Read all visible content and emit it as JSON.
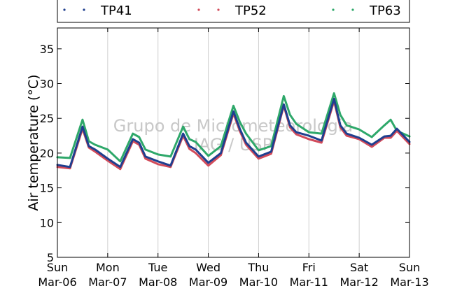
{
  "watermark": {
    "line1": "Grupo de Micrometeorologia",
    "line2": "IAG / USP"
  },
  "chart_data": {
    "type": "line",
    "title": "",
    "xlabel": "",
    "ylabel": "Air temperature (°C)",
    "ylim": [
      5,
      38
    ],
    "yticks": [
      5,
      10,
      15,
      20,
      25,
      30,
      35
    ],
    "xlim": [
      "2016-03-06 00:00",
      "2016-03-13 00:00"
    ],
    "xticks": [
      {
        "day": "Sun",
        "date": "Mar-06"
      },
      {
        "day": "Mon",
        "date": "Mar-07"
      },
      {
        "day": "Tue",
        "date": "Mar-08"
      },
      {
        "day": "Wed",
        "date": "Mar-09"
      },
      {
        "day": "Thu",
        "date": "Mar-10"
      },
      {
        "day": "Fri",
        "date": "Mar-11"
      },
      {
        "day": "Sat",
        "date": "Mar-12"
      },
      {
        "day": "Sun",
        "date": "Mar-13"
      }
    ],
    "grid": "vertical",
    "legend": "top",
    "x": [
      "03-06 00:00",
      "03-06 06:00",
      "03-06 12:00",
      "03-06 15:00",
      "03-06 18:00",
      "03-07 00:00",
      "03-07 06:00",
      "03-07 12:00",
      "03-07 15:00",
      "03-07 18:00",
      "03-08 00:00",
      "03-08 06:00",
      "03-08 12:00",
      "03-08 15:00",
      "03-08 18:00",
      "03-09 00:00",
      "03-09 06:00",
      "03-09 12:00",
      "03-09 15:00",
      "03-09 18:00",
      "03-10 00:00",
      "03-10 06:00",
      "03-10 12:00",
      "03-10 15:00",
      "03-10 18:00",
      "03-11 00:00",
      "03-11 06:00",
      "03-11 12:00",
      "03-11 15:00",
      "03-11 18:00",
      "03-12 00:00",
      "03-12 06:00",
      "03-12 12:00",
      "03-12 15:00",
      "03-12 18:00",
      "03-13 00:00"
    ],
    "series": [
      {
        "name": "TP41",
        "color": "#1f3f8f",
        "values": [
          18.3,
          18.0,
          23.8,
          21.0,
          20.5,
          19.2,
          18.0,
          22.0,
          21.5,
          19.5,
          18.8,
          18.2,
          22.8,
          21.0,
          20.5,
          18.6,
          20.0,
          26.0,
          23.5,
          21.5,
          19.5,
          20.2,
          27.0,
          24.0,
          23.0,
          22.5,
          21.8,
          27.8,
          24.0,
          22.8,
          22.2,
          21.2,
          22.4,
          22.5,
          23.5,
          21.6
        ]
      },
      {
        "name": "TP52",
        "color": "#d24b5a",
        "values": [
          18.0,
          17.8,
          23.5,
          20.8,
          20.2,
          18.9,
          17.7,
          21.7,
          21.2,
          19.2,
          18.4,
          18.0,
          22.5,
          20.6,
          20.0,
          18.2,
          19.7,
          25.7,
          23.2,
          21.2,
          19.2,
          19.9,
          26.8,
          23.7,
          22.7,
          22.0,
          21.5,
          27.5,
          23.7,
          22.5,
          22.0,
          20.9,
          22.2,
          22.2,
          23.2,
          21.3
        ]
      },
      {
        "name": "TP63",
        "color": "#2ea86a",
        "values": [
          19.4,
          19.3,
          24.8,
          21.7,
          21.2,
          20.5,
          18.8,
          22.8,
          22.3,
          20.5,
          19.8,
          19.5,
          23.8,
          22.0,
          21.6,
          19.6,
          21.0,
          26.8,
          24.5,
          22.8,
          20.4,
          21.0,
          28.2,
          25.5,
          24.2,
          23.0,
          22.8,
          28.6,
          25.5,
          24.0,
          23.4,
          22.3,
          24.0,
          24.8,
          23.2,
          22.4
        ]
      }
    ]
  }
}
